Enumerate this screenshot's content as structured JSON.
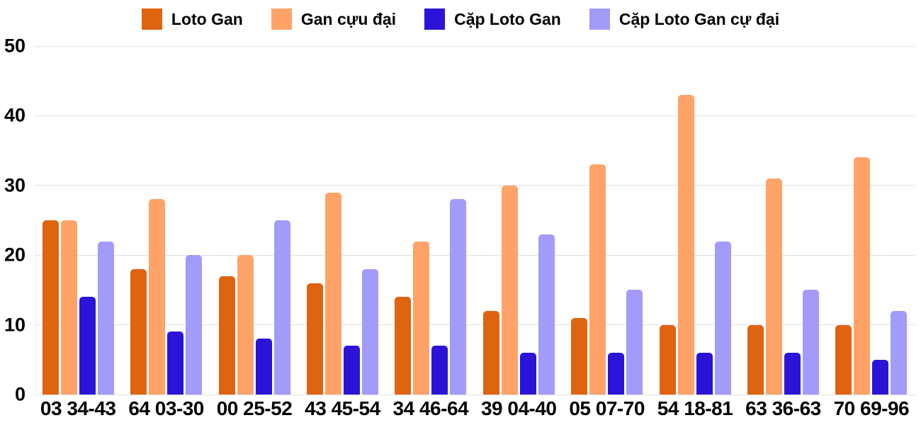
{
  "chart_data": {
    "type": "bar",
    "title": "",
    "legend_position": "top",
    "grid": true,
    "gridline_color": "#e2e2e2",
    "background_color": "#ffffff",
    "text_color": "#000000",
    "ylim": [
      0,
      50
    ],
    "yticks": [
      0,
      10,
      20,
      30,
      40,
      50
    ],
    "categories": [
      "03 34-43",
      "64 03-30",
      "00 25-52",
      "43 45-54",
      "34 46-64",
      "39 04-40",
      "05 07-70",
      "54 18-81",
      "63 36-63",
      "70 69-96"
    ],
    "series": [
      {
        "name": "Loto Gan",
        "color": "#df640f",
        "values": [
          25,
          18,
          17,
          16,
          14,
          12,
          11,
          10,
          10,
          10
        ]
      },
      {
        "name": "Gan cựu đại",
        "color": "#ffa368",
        "values": [
          25,
          28,
          20,
          29,
          22,
          30,
          33,
          43,
          31,
          34
        ]
      },
      {
        "name": "Cặp Loto Gan",
        "color": "#2b14d8",
        "values": [
          14,
          9,
          8,
          7,
          7,
          6,
          6,
          6,
          6,
          5
        ]
      },
      {
        "name": "Cặp Loto Gan cự đại",
        "color": "#a29bfa",
        "values": [
          22,
          20,
          25,
          18,
          28,
          23,
          15,
          22,
          15,
          12
        ]
      }
    ]
  }
}
